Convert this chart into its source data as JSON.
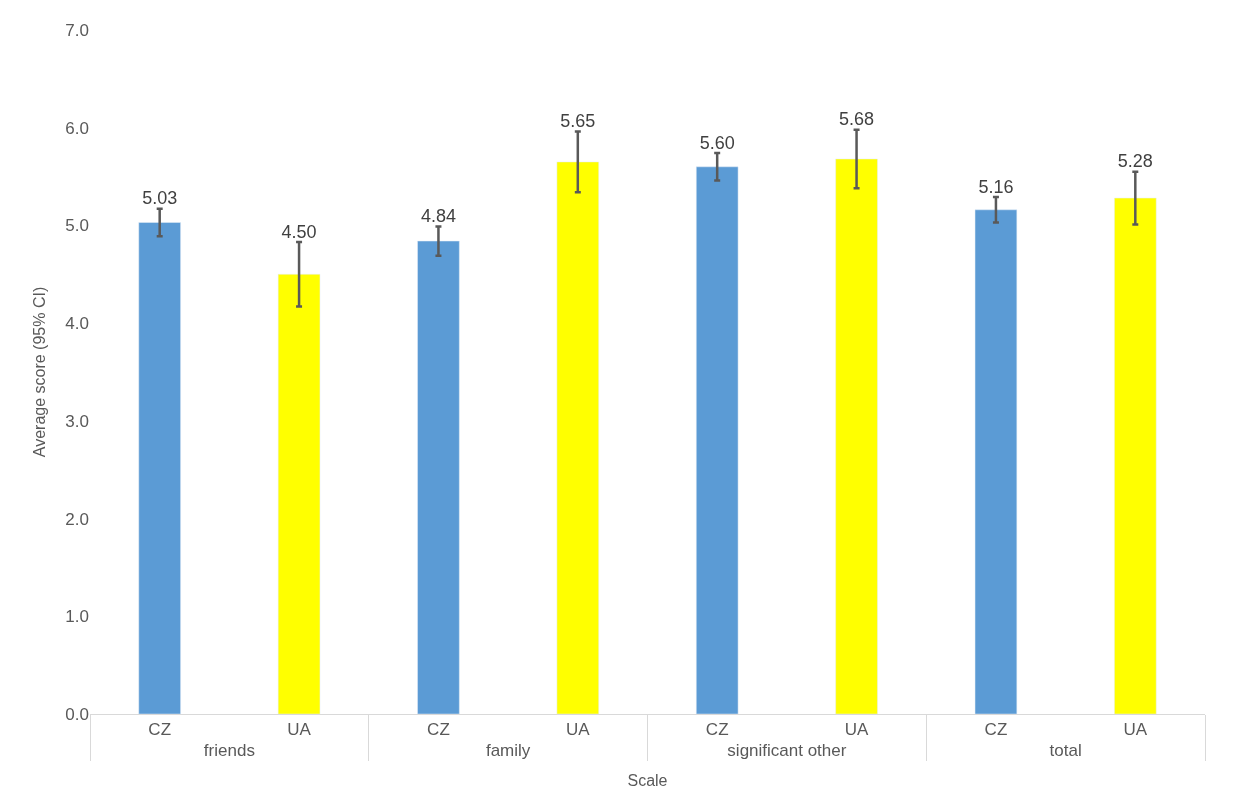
{
  "chart_data": {
    "type": "bar",
    "xlabel": "Scale",
    "ylabel": "Average score (95% CI)",
    "categories": [
      "friends",
      "family",
      "significant other",
      "total"
    ],
    "series": [
      {
        "name": "CZ",
        "color": "#5b9bd5",
        "values": [
          5.03,
          4.84,
          5.6,
          5.16
        ],
        "value_labels": [
          "5.03",
          "4.84",
          "5.60",
          "5.16"
        ],
        "errors": [
          0.14,
          0.15,
          0.14,
          0.13
        ]
      },
      {
        "name": "UA",
        "color": "#ffff00",
        "values": [
          4.5,
          5.65,
          5.68,
          5.28
        ],
        "value_labels": [
          "4.50",
          "5.65",
          "5.68",
          "5.28"
        ],
        "errors": [
          0.33,
          0.31,
          0.3,
          0.27
        ]
      }
    ],
    "grid": false,
    "legend": false,
    "ylim": [
      0,
      7
    ],
    "yticks": [
      {
        "value": 0,
        "label": "0.0"
      },
      {
        "value": 1,
        "label": "1.0"
      },
      {
        "value": 2,
        "label": "2.0"
      },
      {
        "value": 3,
        "label": "3.0"
      },
      {
        "value": 4,
        "label": "4.0"
      },
      {
        "value": 5,
        "label": "5.0"
      },
      {
        "value": 6,
        "label": "6.0"
      },
      {
        "value": 7,
        "label": "7.0"
      }
    ]
  }
}
